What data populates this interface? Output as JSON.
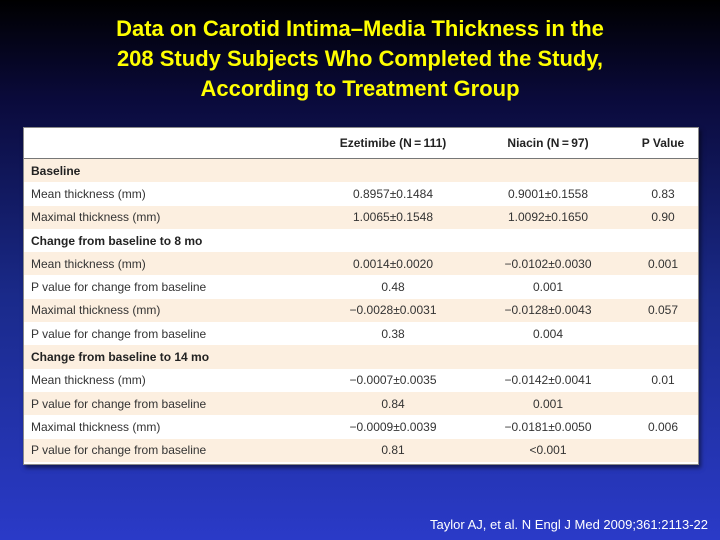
{
  "slide": {
    "title_lines": [
      "Data on Carotid Intima–Media Thickness in the",
      "208 Study Subjects Who Completed the Study,",
      "According to Treatment Group"
    ],
    "citation": "Taylor AJ, et al. N Engl J Med 2009;361:2113-22"
  },
  "table": {
    "headers": [
      "",
      "Ezetimibe (N = 111)",
      "Niacin (N = 97)",
      "P Value"
    ],
    "rows": [
      {
        "type": "section",
        "label": "Baseline",
        "ezetimibe": "",
        "niacin": "",
        "p": ""
      },
      {
        "type": "data",
        "label": "Mean thickness (mm)",
        "ezetimibe": "0.8957±0.1484",
        "niacin": "0.9001±0.1558",
        "p": "0.83"
      },
      {
        "type": "data",
        "label": "Maximal thickness (mm)",
        "ezetimibe": "1.0065±0.1548",
        "niacin": "1.0092±0.1650",
        "p": "0.90"
      },
      {
        "type": "section",
        "label": "Change from baseline to 8 mo",
        "ezetimibe": "",
        "niacin": "",
        "p": ""
      },
      {
        "type": "data",
        "label": "Mean thickness (mm)",
        "ezetimibe": "0.0014±0.0020",
        "niacin": "−0.0102±0.0030",
        "p": "0.001"
      },
      {
        "type": "data",
        "label": "P value for change from baseline",
        "ezetimibe": "0.48",
        "niacin": "0.001",
        "p": ""
      },
      {
        "type": "data",
        "label": "Maximal thickness (mm)",
        "ezetimibe": "−0.0028±0.0031",
        "niacin": "−0.0128±0.0043",
        "p": "0.057"
      },
      {
        "type": "data",
        "label": "P value for change from baseline",
        "ezetimibe": "0.38",
        "niacin": "0.004",
        "p": ""
      },
      {
        "type": "section",
        "label": "Change from baseline to 14 mo",
        "ezetimibe": "",
        "niacin": "",
        "p": ""
      },
      {
        "type": "data",
        "label": "Mean thickness (mm)",
        "ezetimibe": "−0.0007±0.0035",
        "niacin": "−0.0142±0.0041",
        "p": "0.01"
      },
      {
        "type": "data",
        "label": "P value for change from baseline",
        "ezetimibe": "0.84",
        "niacin": "0.001",
        "p": ""
      },
      {
        "type": "data",
        "label": "Maximal thickness (mm)",
        "ezetimibe": "−0.0009±0.0039",
        "niacin": "−0.0181±0.0050",
        "p": "0.006"
      },
      {
        "type": "data",
        "label": "P value for change from baseline",
        "ezetimibe": "0.81",
        "niacin": "<0.001",
        "p": ""
      }
    ]
  },
  "colors": {
    "title": "#ffff00",
    "row_shade": "#fcefe0",
    "background_top": "#000000",
    "background_bottom": "#2a3ac8"
  }
}
